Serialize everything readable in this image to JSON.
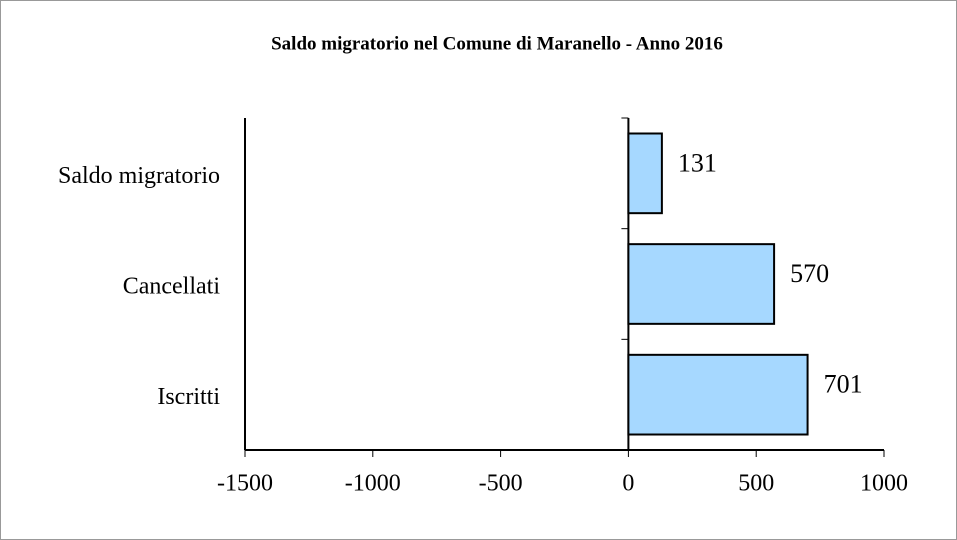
{
  "chart_data": {
    "type": "bar",
    "orientation": "horizontal",
    "title": "Saldo migratorio nel Comune di Maranello - Anno 2016",
    "categories": [
      "Saldo migratorio",
      "Cancellati",
      "Iscritti"
    ],
    "values": [
      131,
      570,
      701
    ],
    "color": "#a6d8ff",
    "xlim": [
      -1500,
      1000
    ],
    "xticks": [
      -1500,
      -1000,
      -500,
      0,
      500,
      1000
    ],
    "grid": false
  }
}
